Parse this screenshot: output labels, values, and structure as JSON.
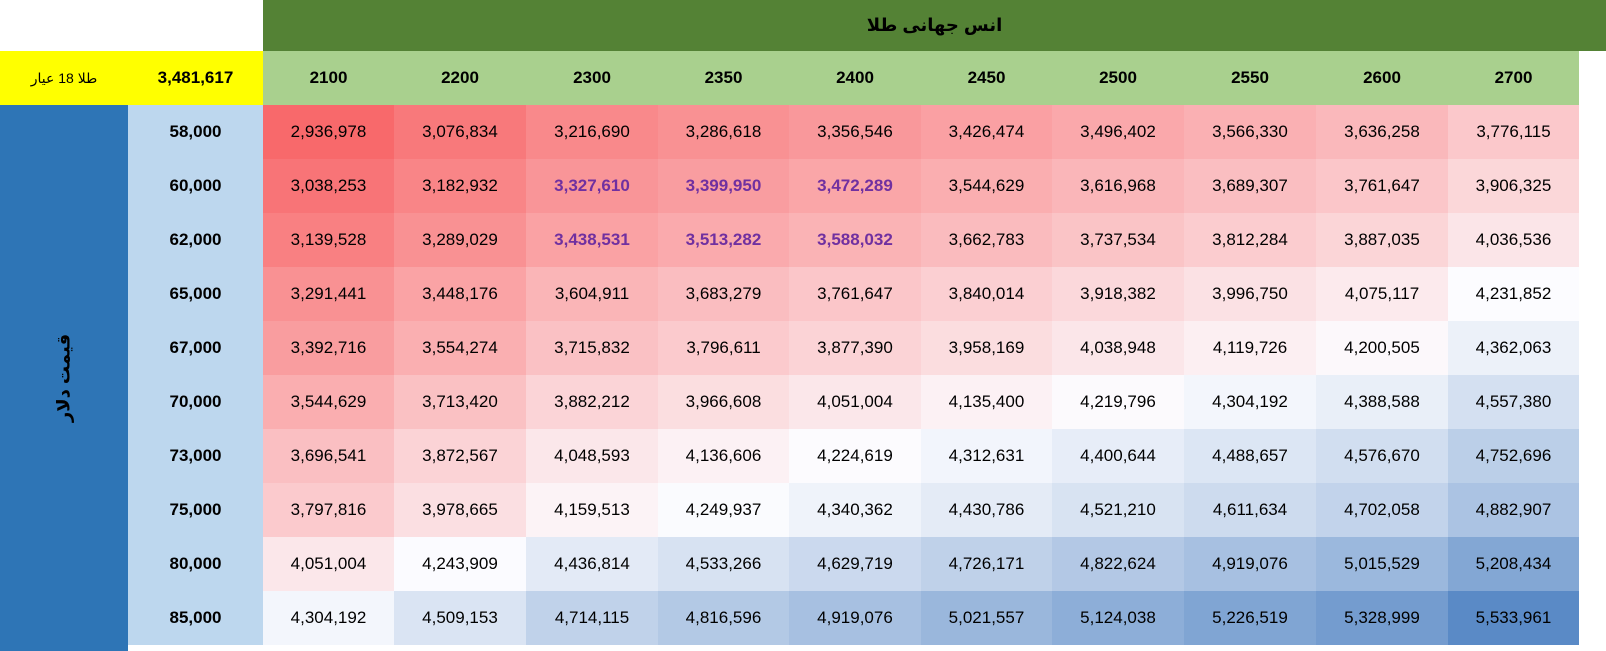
{
  "table": {
    "title": "انس جهانی طلا",
    "gold_label": "طلا 18 عیار",
    "gold_price": "3,481,617",
    "side_label": "قیمت دلار",
    "highlight_color": "#7030a0",
    "scale_colors": {
      "low": "#f8696b",
      "mid": "#fcfcff",
      "high": "#5a8ac6"
    }
  },
  "chart_data": {
    "type": "table",
    "title": "انس جهانی طلا",
    "columns": [
      "2100",
      "2200",
      "2300",
      "2350",
      "2400",
      "2450",
      "2500",
      "2550",
      "2600",
      "2700"
    ],
    "rows": [
      "58,000",
      "60,000",
      "62,000",
      "65,000",
      "67,000",
      "70,000",
      "73,000",
      "75,000",
      "80,000",
      "85,000"
    ],
    "values": [
      [
        "2,936,978",
        "3,076,834",
        "3,216,690",
        "3,286,618",
        "3,356,546",
        "3,426,474",
        "3,496,402",
        "3,566,330",
        "3,636,258",
        "3,776,115"
      ],
      [
        "3,038,253",
        "3,182,932",
        "3,327,610",
        "3,399,950",
        "3,472,289",
        "3,544,629",
        "3,616,968",
        "3,689,307",
        "3,761,647",
        "3,906,325"
      ],
      [
        "3,139,528",
        "3,289,029",
        "3,438,531",
        "3,513,282",
        "3,588,032",
        "3,662,783",
        "3,737,534",
        "3,812,284",
        "3,887,035",
        "4,036,536"
      ],
      [
        "3,291,441",
        "3,448,176",
        "3,604,911",
        "3,683,279",
        "3,761,647",
        "3,840,014",
        "3,918,382",
        "3,996,750",
        "4,075,117",
        "4,231,852"
      ],
      [
        "3,392,716",
        "3,554,274",
        "3,715,832",
        "3,796,611",
        "3,877,390",
        "3,958,169",
        "4,038,948",
        "4,119,726",
        "4,200,505",
        "4,362,063"
      ],
      [
        "3,544,629",
        "3,713,420",
        "3,882,212",
        "3,966,608",
        "4,051,004",
        "4,135,400",
        "4,219,796",
        "4,304,192",
        "4,388,588",
        "4,557,380"
      ],
      [
        "3,696,541",
        "3,872,567",
        "4,048,593",
        "4,136,606",
        "4,224,619",
        "4,312,631",
        "4,400,644",
        "4,488,657",
        "4,576,670",
        "4,752,696"
      ],
      [
        "3,797,816",
        "3,978,665",
        "4,159,513",
        "4,249,937",
        "4,340,362",
        "4,430,786",
        "4,521,210",
        "4,611,634",
        "4,702,058",
        "4,882,907"
      ],
      [
        "4,051,004",
        "4,243,909",
        "4,436,814",
        "4,533,266",
        "4,629,719",
        "4,726,171",
        "4,822,624",
        "4,919,076",
        "5,015,529",
        "5,208,434"
      ],
      [
        "4,304,192",
        "4,509,153",
        "4,714,115",
        "4,816,596",
        "4,919,076",
        "5,021,557",
        "5,124,038",
        "5,226,519",
        "5,328,999",
        "5,533,961"
      ]
    ],
    "highlighted_cells": [
      [
        1,
        2
      ],
      [
        1,
        3
      ],
      [
        1,
        4
      ],
      [
        2,
        2
      ],
      [
        2,
        3
      ],
      [
        2,
        4
      ]
    ]
  }
}
